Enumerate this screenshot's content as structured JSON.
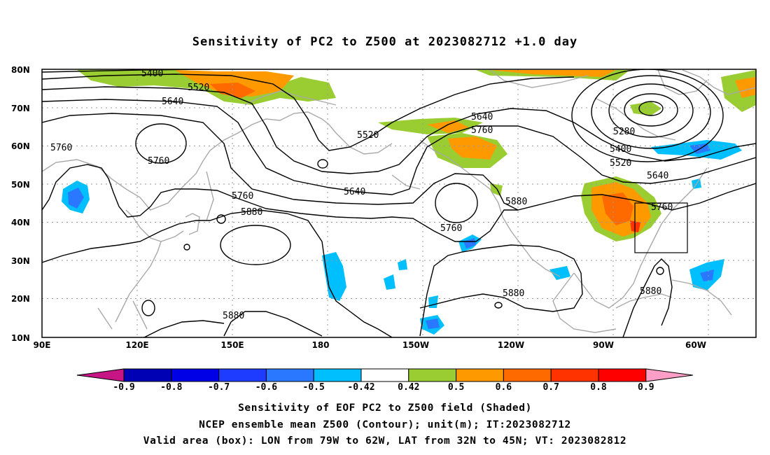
{
  "title": "Sensitivity of PC2 to Z500 at 2023082712 +1.0 day",
  "map": {
    "lat_ticks": [
      "80N",
      "70N",
      "60N",
      "50N",
      "40N",
      "30N",
      "20N",
      "10N"
    ],
    "lon_ticks": [
      "90E",
      "120E",
      "150E",
      "180",
      "150W",
      "120W",
      "90W",
      "60W"
    ],
    "contour_labels": [
      "5400",
      "5520",
      "5640",
      "5760",
      "5760",
      "5520",
      "5640",
      "5760",
      "5880",
      "5640",
      "5760",
      "5280",
      "5400",
      "5520",
      "5640",
      "5760",
      "5880",
      "5760",
      "5880",
      "5880",
      "5880"
    ],
    "valid_box": {
      "lon": [
        -79,
        -62
      ],
      "lat": [
        32,
        45
      ]
    }
  },
  "colorbar": {
    "labels": [
      "-0.9",
      "-0.8",
      "-0.7",
      "-0.6",
      "-0.5",
      "-0.42",
      "0.42",
      "0.5",
      "0.6",
      "0.7",
      "0.8",
      "0.9"
    ],
    "colors": [
      "#c71585",
      "#0000b4",
      "#0000e6",
      "#1e3cff",
      "#2a78ff",
      "#00bfff",
      "#ffffff",
      "#9acd32",
      "#ff9900",
      "#ff6a00",
      "#ff3300",
      "#ff0000",
      "#ff9ec7"
    ]
  },
  "captions": {
    "line1": "Sensitivity of EOF PC2 to Z500 field (Shaded)",
    "line2": "NCEP ensemble mean Z500 (Contour); unit(m); IT:2023082712",
    "line3": "Valid area (box): LON from 79W to 62W, LAT from 32N to 45N; VT: 2023082812"
  }
}
